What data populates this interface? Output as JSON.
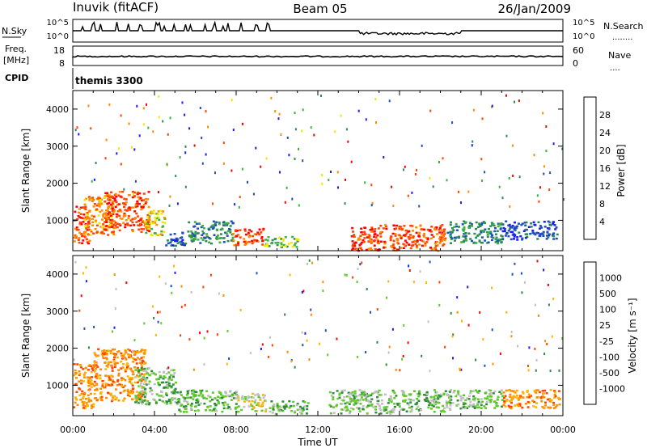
{
  "header": {
    "station": "Inuvik (fitACF)",
    "beam": "Beam 05",
    "date": "26/Jan/2009"
  },
  "panels": {
    "nsky": {
      "left_label": "N.Sky",
      "right_label": "N.Search",
      "right_legend_dots": "........",
      "left_ticks": [
        "10^5",
        "10^0"
      ],
      "right_ticks": [
        "10^5",
        "10^0"
      ]
    },
    "freq": {
      "left_label_line1": "Freq.",
      "left_label_line2": "[MHz]",
      "right_label": "Nave",
      "right_legend_dots": "....",
      "left_ticks": [
        "18",
        "8"
      ],
      "right_ticks": [
        "60",
        "0"
      ]
    },
    "cpid": {
      "left_label": "CPID",
      "program": "themis 3300"
    }
  },
  "colors": {
    "power": [
      "#1a1aff",
      "#1f4fb8",
      "#2e8b57",
      "#3cb043",
      "#f2e600",
      "#ff8c00",
      "#ff4500",
      "#ff0000"
    ],
    "velocity": [
      "#ff0000",
      "#ff4500",
      "#ff8c00",
      "#ffb400",
      "#c0c0c0",
      "#5ecb2a",
      "#2f8a3f",
      "#1f4fb8",
      "#1a1aff"
    ]
  },
  "chart_data": [
    {
      "type": "heatmap",
      "quantity": "power",
      "ylabel": "Slant Range [km]",
      "ylim": [
        180,
        4500
      ],
      "yticks": [
        "1000",
        "2000",
        "3000",
        "4000"
      ],
      "xlim_hours": [
        0,
        24
      ],
      "colorbar_label": "Power [dB]",
      "colorbar_ticks": [
        "4",
        "8",
        "12",
        "16",
        "20",
        "24",
        "28"
      ],
      "regions": [
        {
          "t": [
            0.0,
            0.8
          ],
          "r": [
            400,
            1400
          ],
          "level": 28
        },
        {
          "t": [
            0.5,
            2.0
          ],
          "r": [
            600,
            1700
          ],
          "level": 24
        },
        {
          "t": [
            1.5,
            3.7
          ],
          "r": [
            700,
            1800
          ],
          "level": 28
        },
        {
          "t": [
            3.5,
            4.5
          ],
          "r": [
            600,
            1300
          ],
          "level": 20
        },
        {
          "t": [
            4.5,
            5.5
          ],
          "r": [
            300,
            700
          ],
          "level": 8
        },
        {
          "t": [
            5.6,
            7.8
          ],
          "r": [
            400,
            1000
          ],
          "level": 12
        },
        {
          "t": [
            7.8,
            9.3
          ],
          "r": [
            350,
            800
          ],
          "level": 28
        },
        {
          "t": [
            9.3,
            11.0
          ],
          "r": [
            300,
            600
          ],
          "level": 16
        },
        {
          "t": [
            13.6,
            15.3
          ],
          "r": [
            200,
            900
          ],
          "level": 28
        },
        {
          "t": [
            15.5,
            18.2
          ],
          "r": [
            200,
            900
          ],
          "level": 28
        },
        {
          "t": [
            18.3,
            21.0
          ],
          "r": [
            400,
            1000
          ],
          "level": 12
        },
        {
          "t": [
            21.0,
            23.7
          ],
          "r": [
            500,
            1000
          ],
          "level": 8
        }
      ]
    },
    {
      "type": "heatmap",
      "quantity": "velocity",
      "ylabel": "Slant Range [km]",
      "ylim": [
        180,
        4500
      ],
      "yticks": [
        "1000",
        "2000",
        "3000",
        "4000"
      ],
      "xlim_hours": [
        0,
        24
      ],
      "xticks": [
        "00:00",
        "04:00",
        "08:00",
        "12:00",
        "16:00",
        "20:00",
        "00:00"
      ],
      "xlabel": "Time UT",
      "colorbar_label": "Velocity [m s⁻¹]",
      "colorbar_ticks": [
        "1000",
        "500",
        "100",
        "25",
        "-25",
        "-100",
        "-500",
        "-1000"
      ],
      "regions": [
        {
          "t": [
            0.0,
            1.0
          ],
          "r": [
            400,
            1600
          ],
          "level": -100
        },
        {
          "t": [
            1.0,
            3.5
          ],
          "r": [
            600,
            2000
          ],
          "level": -100
        },
        {
          "t": [
            3.0,
            5.0
          ],
          "r": [
            500,
            1500
          ],
          "level": 100
        },
        {
          "t": [
            5.0,
            8.0
          ],
          "r": [
            300,
            900
          ],
          "level": 100
        },
        {
          "t": [
            8.0,
            9.5
          ],
          "r": [
            300,
            800
          ],
          "level": 25
        },
        {
          "t": [
            9.5,
            11.5
          ],
          "r": [
            250,
            600
          ],
          "level": 100
        },
        {
          "t": [
            12.5,
            15.5
          ],
          "r": [
            250,
            900
          ],
          "level": 100
        },
        {
          "t": [
            15.5,
            18.5
          ],
          "r": [
            300,
            900
          ],
          "level": 100
        },
        {
          "t": [
            18.5,
            21.0
          ],
          "r": [
            400,
            900
          ],
          "level": 100
        },
        {
          "t": [
            21.0,
            23.8
          ],
          "r": [
            400,
            900
          ],
          "level": -100
        }
      ]
    }
  ]
}
